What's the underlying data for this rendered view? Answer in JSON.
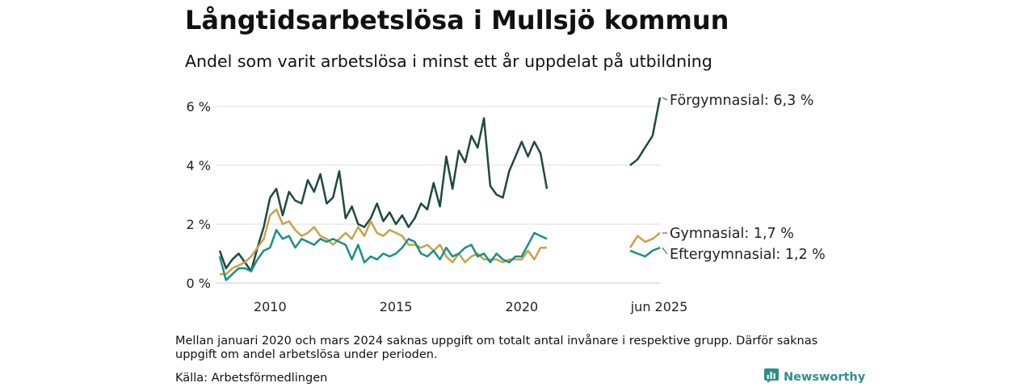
{
  "title": "Långtidsarbetslösa i Mullsjö kommun",
  "subtitle": "Andel som varit arbetslösa i minst ett år uppdelat på utbildning",
  "note": "Mellan januari 2020 och mars 2024 saknas uppgift om totalt antal invånare i respektive grupp. Därför saknas uppgift om andel arbetslösa under perioden.",
  "source": "Källa: Arbetsförmedlingen",
  "brand": "Newsworthy",
  "chart_data": {
    "type": "line",
    "title": "Långtidsarbetslösa i Mullsjö kommun",
    "subtitle": "Andel som varit arbetslösa i minst ett år uppdelat på utbildning",
    "ylim": [
      0,
      6.5
    ],
    "yticks": [
      {
        "value": 0,
        "label": "0 %"
      },
      {
        "value": 2,
        "label": "2 %"
      },
      {
        "value": 4,
        "label": "4 %"
      },
      {
        "value": 6,
        "label": "6 %"
      }
    ],
    "xticks": [
      {
        "value": 2010,
        "label": "2010"
      },
      {
        "value": 2015,
        "label": "2015"
      },
      {
        "value": 2020,
        "label": "2020"
      }
    ],
    "xlim": [
      2008.0,
      2021.0
    ],
    "recent_segment": {
      "xlim": [
        2024.25,
        2025.5
      ],
      "tick_label": "jun 2025"
    },
    "grid": true,
    "series": [
      {
        "name": "Förgymnasial",
        "end_label": "Förgymnasial: 6,3 %",
        "color": "#1f4a3f",
        "x": [
          2008.0,
          2008.25,
          2008.5,
          2008.75,
          2009.0,
          2009.25,
          2009.5,
          2009.75,
          2010.0,
          2010.25,
          2010.5,
          2010.75,
          2011.0,
          2011.25,
          2011.5,
          2011.75,
          2012.0,
          2012.25,
          2012.5,
          2012.75,
          2013.0,
          2013.25,
          2013.5,
          2013.75,
          2014.0,
          2014.25,
          2014.5,
          2014.75,
          2015.0,
          2015.25,
          2015.5,
          2015.75,
          2016.0,
          2016.25,
          2016.5,
          2016.75,
          2017.0,
          2017.25,
          2017.5,
          2017.75,
          2018.0,
          2018.25,
          2018.5,
          2018.75,
          2019.0,
          2019.25,
          2019.5,
          2019.75,
          2020.0,
          2020.25,
          2020.5,
          2020.75,
          2021.0
        ],
        "y": [
          1.1,
          0.5,
          0.8,
          1.0,
          0.7,
          0.4,
          1.2,
          1.9,
          2.9,
          3.2,
          2.3,
          3.1,
          2.8,
          2.7,
          3.5,
          3.1,
          3.7,
          2.7,
          2.9,
          3.8,
          2.2,
          2.6,
          2.0,
          1.9,
          2.2,
          2.7,
          2.1,
          2.4,
          2.0,
          2.3,
          1.9,
          2.2,
          2.7,
          2.5,
          3.4,
          2.6,
          4.3,
          3.2,
          4.5,
          4.1,
          5.0,
          4.6,
          5.6,
          3.3,
          3.0,
          2.9,
          3.8,
          4.3,
          4.8,
          4.3,
          4.8,
          4.4,
          3.2
        ],
        "recent_y": [
          4.0,
          4.2,
          4.6,
          5.0,
          6.3
        ]
      },
      {
        "name": "Gymnasial",
        "end_label": "Gymnasial: 1,7 %",
        "color": "#c9a24b",
        "x": [
          2008.0,
          2008.25,
          2008.5,
          2008.75,
          2009.0,
          2009.25,
          2009.5,
          2009.75,
          2010.0,
          2010.25,
          2010.5,
          2010.75,
          2011.0,
          2011.25,
          2011.5,
          2011.75,
          2012.0,
          2012.25,
          2012.5,
          2012.75,
          2013.0,
          2013.25,
          2013.5,
          2013.75,
          2014.0,
          2014.25,
          2014.5,
          2014.75,
          2015.0,
          2015.25,
          2015.5,
          2015.75,
          2016.0,
          2016.25,
          2016.5,
          2016.75,
          2017.0,
          2017.25,
          2017.5,
          2017.75,
          2018.0,
          2018.25,
          2018.5,
          2018.75,
          2019.0,
          2019.25,
          2019.5,
          2019.75,
          2020.0,
          2020.25,
          2020.5,
          2020.75,
          2021.0
        ],
        "y": [
          0.3,
          0.3,
          0.5,
          0.6,
          0.7,
          0.9,
          1.2,
          1.5,
          2.3,
          2.5,
          2.0,
          2.1,
          1.8,
          1.6,
          1.7,
          1.9,
          1.6,
          1.5,
          1.3,
          1.5,
          1.7,
          1.5,
          1.9,
          1.6,
          2.1,
          1.7,
          1.6,
          1.8,
          1.7,
          1.6,
          1.3,
          1.3,
          1.2,
          1.3,
          1.1,
          1.3,
          0.9,
          0.7,
          1.0,
          0.7,
          0.9,
          1.0,
          0.8,
          0.8,
          0.8,
          0.7,
          0.8,
          0.8,
          0.8,
          1.1,
          0.8,
          1.2,
          1.2
        ],
        "recent_y": [
          1.2,
          1.6,
          1.4,
          1.5,
          1.7
        ]
      },
      {
        "name": "Eftergymnasial",
        "end_label": "Eftergymnasial: 1,2 %",
        "color": "#1a9084",
        "x": [
          2008.0,
          2008.25,
          2008.5,
          2008.75,
          2009.0,
          2009.25,
          2009.5,
          2009.75,
          2010.0,
          2010.25,
          2010.5,
          2010.75,
          2011.0,
          2011.25,
          2011.5,
          2011.75,
          2012.0,
          2012.25,
          2012.5,
          2012.75,
          2013.0,
          2013.25,
          2013.5,
          2013.75,
          2014.0,
          2014.25,
          2014.5,
          2014.75,
          2015.0,
          2015.25,
          2015.5,
          2015.75,
          2016.0,
          2016.25,
          2016.5,
          2016.75,
          2017.0,
          2017.25,
          2017.5,
          2017.75,
          2018.0,
          2018.25,
          2018.5,
          2018.75,
          2019.0,
          2019.25,
          2019.5,
          2019.75,
          2020.0,
          2020.25,
          2020.5,
          2020.75,
          2021.0
        ],
        "y": [
          0.9,
          0.1,
          0.3,
          0.5,
          0.5,
          0.4,
          0.8,
          1.1,
          1.2,
          1.8,
          1.5,
          1.6,
          1.2,
          1.5,
          1.4,
          1.3,
          1.5,
          1.4,
          1.5,
          1.4,
          1.3,
          0.8,
          1.3,
          0.7,
          0.9,
          0.8,
          1.0,
          0.9,
          1.0,
          1.2,
          1.5,
          1.4,
          1.0,
          0.9,
          1.1,
          0.8,
          1.2,
          0.9,
          1.0,
          1.2,
          1.3,
          0.9,
          1.0,
          0.7,
          1.0,
          0.8,
          0.7,
          0.9,
          0.9,
          1.3,
          1.7,
          1.6,
          1.5
        ],
        "recent_y": [
          1.1,
          1.0,
          0.9,
          1.1,
          1.2
        ]
      }
    ]
  }
}
